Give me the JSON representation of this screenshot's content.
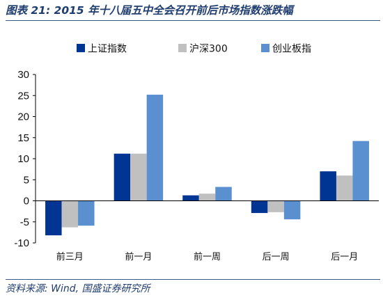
{
  "figure": {
    "title": "图表 21:  2015 年十八届五中全会召开前后市场指数涨跌幅",
    "source": "资料来源:  Wind,  国盛证券研究所"
  },
  "chart_data": {
    "type": "bar",
    "categories": [
      "前三月",
      "前一月",
      "前一周",
      "后一周",
      "后一月"
    ],
    "series": [
      {
        "name": "上证指数",
        "color": "#003594",
        "values": [
          -8.2,
          11.2,
          1.3,
          -2.9,
          7.0
        ]
      },
      {
        "name": "沪深300",
        "color": "#c0c0c0",
        "values": [
          -6.3,
          11.2,
          1.7,
          -2.7,
          6.0
        ]
      },
      {
        "name": "创业板指",
        "color": "#5a8fd0",
        "values": [
          -5.9,
          25.2,
          3.3,
          -4.4,
          14.2
        ]
      }
    ],
    "ylim": [
      -10,
      30
    ],
    "yticks": [
      -10,
      -5,
      0,
      5,
      10,
      15,
      20,
      25,
      30
    ],
    "grid": false,
    "legend_position": "top"
  }
}
